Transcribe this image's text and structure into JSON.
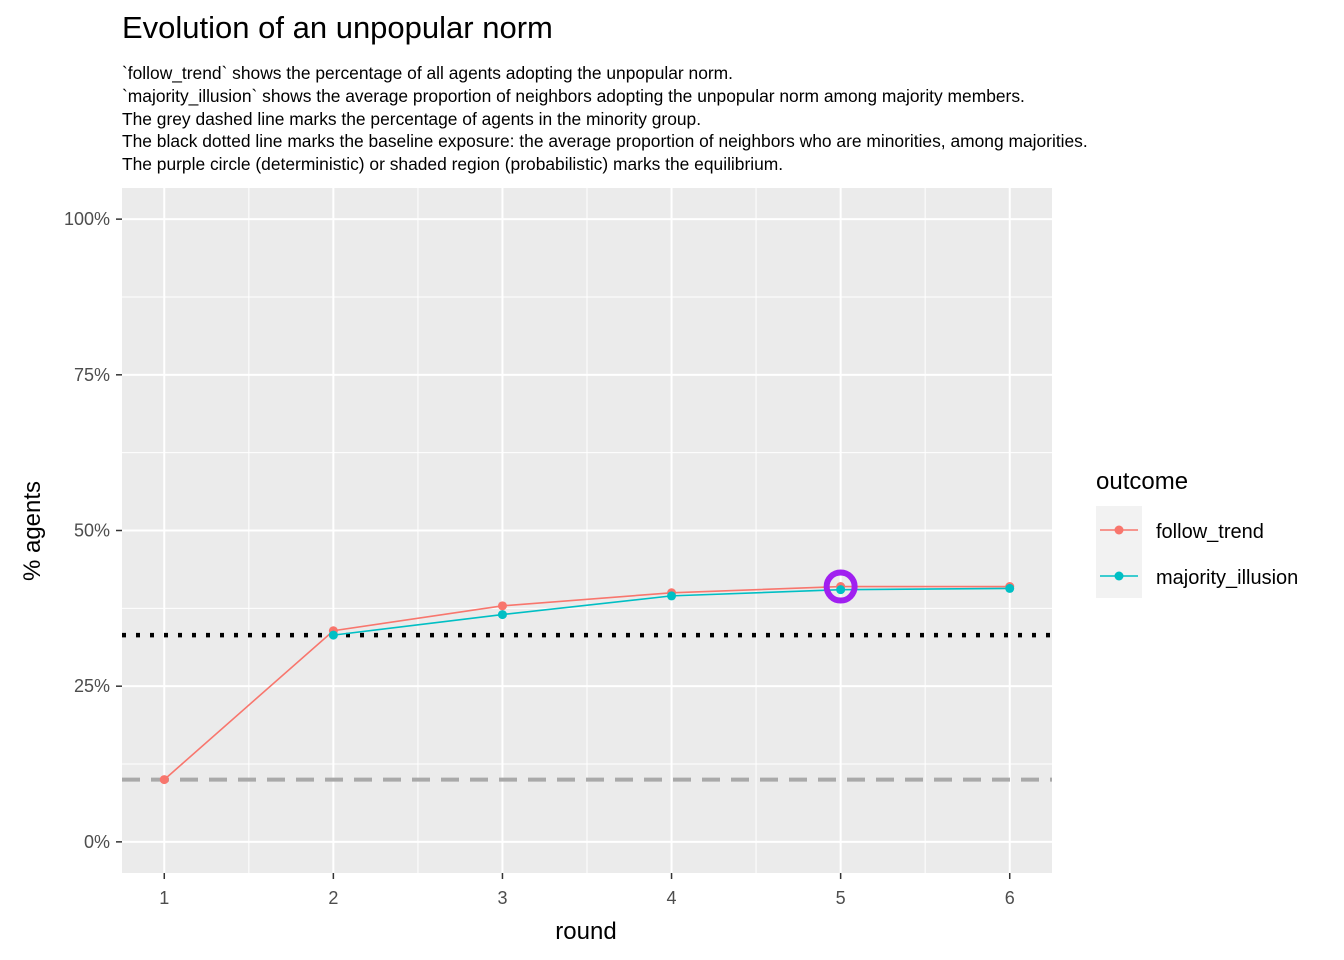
{
  "chart_data": {
    "type": "line",
    "title": "Evolution of an unpopular norm",
    "subtitle": [
      "`follow_trend` shows the percentage of all agents adopting the unpopular norm.",
      "`majority_illusion` shows the average proportion of neighbors adopting the unpopular norm among majority members.",
      "The grey dashed line marks the percentage of agents in the minority group.",
      "The black dotted line marks the baseline exposure: the average proportion of neighbors who are minorities, among majorities.",
      "The purple circle (deterministic) or shaded region (probabilistic) marks the equilibrium."
    ],
    "xlabel": "round",
    "ylabel": "% agents",
    "x": [
      1,
      2,
      3,
      4,
      5,
      6
    ],
    "x_ticks": [
      "1",
      "2",
      "3",
      "4",
      "5",
      "6"
    ],
    "ylim": [
      -0.05,
      1.05
    ],
    "y_ticks": [
      0,
      0.25,
      0.5,
      0.75,
      1.0
    ],
    "y_tick_labels": [
      "0%",
      "25%",
      "50%",
      "75%",
      "100%"
    ],
    "series": [
      {
        "name": "follow_trend",
        "color": "#F8766D",
        "values": [
          0.1,
          0.339,
          0.379,
          0.4,
          0.41,
          0.41
        ]
      },
      {
        "name": "majority_illusion",
        "color": "#00BFC4",
        "values": [
          null,
          0.332,
          0.365,
          0.395,
          0.405,
          0.407
        ]
      }
    ],
    "reference_lines": [
      {
        "kind": "minority-share",
        "y": 0.1,
        "style": "dashed",
        "color": "#A9A9A9"
      },
      {
        "kind": "baseline-exposure",
        "y": 0.332,
        "style": "dotted",
        "color": "#000000"
      }
    ],
    "equilibrium": {
      "x": 5,
      "y": 0.41,
      "color": "#A020F0"
    },
    "legend": {
      "title": "outcome",
      "position": "right"
    },
    "grid": true,
    "panel_background": "#EBEBEB"
  }
}
